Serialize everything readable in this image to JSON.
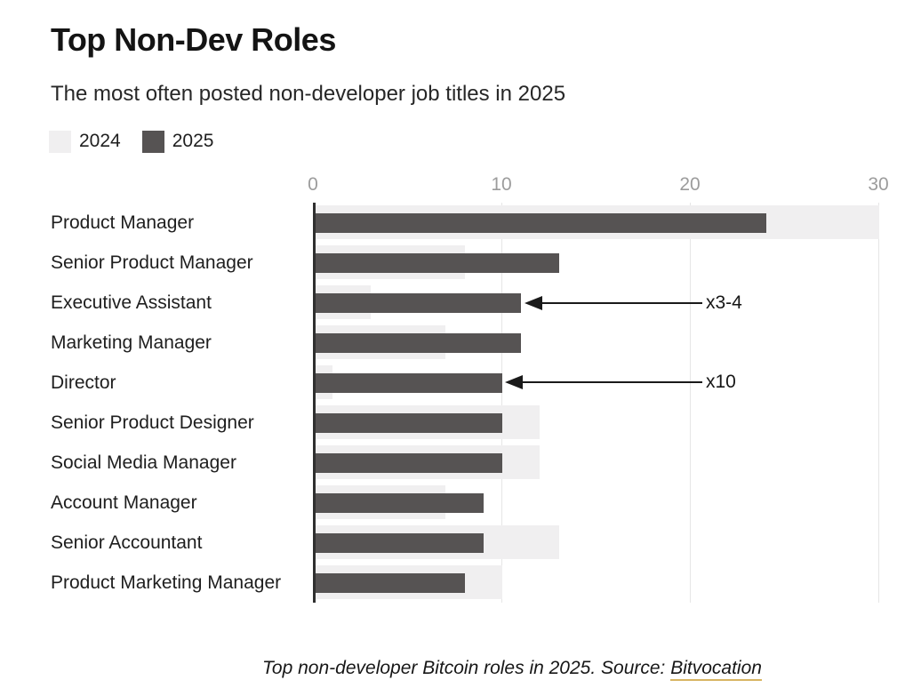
{
  "chart_data": {
    "type": "bar",
    "orientation": "horizontal",
    "title": "Top Non-Dev Roles",
    "subtitle": "The most often posted non-developer job titles in 2025",
    "categories": [
      "Product Manager",
      "Senior Product Manager",
      "Executive Assistant",
      "Marketing Manager",
      "Director",
      "Senior Product Designer",
      "Social Media Manager",
      "Account Manager",
      "Senior Accountant",
      "Product Marketing Manager"
    ],
    "series": [
      {
        "name": "2024",
        "color": "#f0eff0",
        "values": [
          30,
          8,
          3,
          7,
          1,
          12,
          12,
          7,
          13,
          10
        ]
      },
      {
        "name": "2025",
        "color": "#565353",
        "values": [
          24,
          13,
          11,
          11,
          10,
          10,
          10,
          9,
          9,
          8
        ]
      }
    ],
    "x_ticks": [
      0,
      10,
      20,
      30
    ],
    "xlim": [
      0,
      30
    ],
    "grid": true,
    "legend_position": "top-left",
    "annotations": [
      {
        "text": "x3-4",
        "target_category": "Executive Assistant",
        "target_series": "2025",
        "target_value": 11
      },
      {
        "text": "x10",
        "target_category": "Director",
        "target_series": "2025",
        "target_value": 10
      }
    ]
  },
  "colors": {
    "bar_2024": "#f0eff0",
    "bar_2025": "#565353",
    "gridline": "#e6e6e6",
    "axis_line": "#2f2f2f",
    "tick_label": "#9c9c9c",
    "arrow": "#1a1a1a",
    "link_underline": "#d8b563"
  },
  "caption": {
    "text": "Top non-developer Bitcoin roles in 2025. Source: ",
    "link_text": "Bitvocation"
  }
}
